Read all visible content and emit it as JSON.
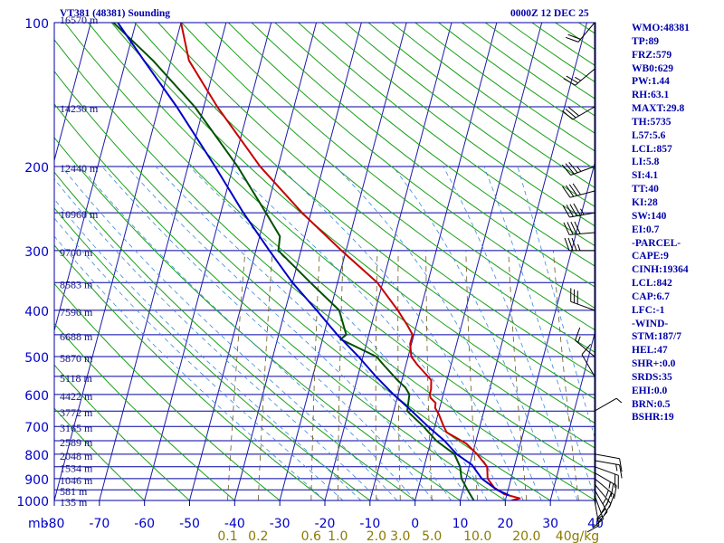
{
  "titles": {
    "left": "VT381 (48381) Sounding",
    "right": "0000Z 12 DEC 25"
  },
  "stats": [
    "WMO:48381",
    "TP:89",
    "FRZ:579",
    "WB0:629",
    "PW:1.44",
    "RH:63.1",
    "MAXT:29.8",
    "TH:5735",
    "L57:5.6",
    "LCL:857",
    "LI:5.8",
    "SI:4.1",
    "TT:40",
    "KI:28",
    "SW:140",
    "EI:0.7",
    "-PARCEL-",
    "CAPE:9",
    "CINH:19364",
    "LCL:842",
    "CAP:6.7",
    "LFC:-1",
    "-WIND-",
    "STM:187/7",
    "HEL:47",
    "SHR+:0.0",
    "SRDS:35",
    "EHI:0.0",
    "BRN:0.5",
    "BSHR:19"
  ],
  "chart_data": {
    "type": "line",
    "subtype": "skew-t log-p sounding",
    "pressure_label": "mb",
    "pressure_ticks": [
      100,
      200,
      300,
      400,
      500,
      600,
      700,
      800,
      900,
      1000
    ],
    "temperature_ticks": [
      -80,
      -70,
      -60,
      -50,
      -40,
      -30,
      -20,
      -10,
      0,
      10,
      20,
      30,
      40
    ],
    "temperature_range": [
      -80,
      40
    ],
    "pressure_range": [
      1000,
      100
    ],
    "mixing_ratio_labels": [
      "0.1",
      "0.2",
      "0.6",
      "1.0",
      "2.0",
      "3.0",
      "5.0",
      "10.0",
      "20.0",
      "40g/kg"
    ],
    "mixing_ratio_values": [
      0.1,
      0.2,
      0.6,
      1.0,
      2.0,
      3.0,
      5.0,
      10.0,
      20.0,
      40.0
    ],
    "heights": [
      {
        "p": 1000,
        "label": "135 m"
      },
      {
        "p": 950,
        "label": "581 m"
      },
      {
        "p": 900,
        "label": "1046 m"
      },
      {
        "p": 850,
        "label": "1534 m"
      },
      {
        "p": 800,
        "label": "2048 m"
      },
      {
        "p": 750,
        "label": "2589 m"
      },
      {
        "p": 700,
        "label": "3165 m"
      },
      {
        "p": 650,
        "label": "3772 m"
      },
      {
        "p": 600,
        "label": "4422 m"
      },
      {
        "p": 550,
        "label": "5118 m"
      },
      {
        "p": 500,
        "label": "5870 m"
      },
      {
        "p": 450,
        "label": "6688 m"
      },
      {
        "p": 400,
        "label": "7590 m"
      },
      {
        "p": 350,
        "label": "8583 m"
      },
      {
        "p": 300,
        "label": "9700 m"
      },
      {
        "p": 250,
        "label": "10960 m"
      },
      {
        "p": 200,
        "label": "12440 m"
      },
      {
        "p": 150,
        "label": "14230 m"
      },
      {
        "p": 100,
        "label": "16570 m"
      }
    ],
    "series": [
      {
        "name": "temperature",
        "color": "#c80000",
        "points": [
          [
            1000,
            21.4
          ],
          [
            990,
            23.1
          ],
          [
            970,
            19.4
          ],
          [
            940,
            16.8
          ],
          [
            900,
            14.8
          ],
          [
            850,
            14.0
          ],
          [
            800,
            11.0
          ],
          [
            760,
            8.0
          ],
          [
            720,
            3.0
          ],
          [
            700,
            2.0
          ],
          [
            660,
            0.2
          ],
          [
            640,
            -1.0
          ],
          [
            625,
            -1.2
          ],
          [
            610,
            -2.6
          ],
          [
            600,
            -3.0
          ],
          [
            585,
            -3.0
          ],
          [
            560,
            -3.5
          ],
          [
            520,
            -7.5
          ],
          [
            500,
            -9.3
          ],
          [
            470,
            -10.3
          ],
          [
            450,
            -10.3
          ],
          [
            430,
            -12.0
          ],
          [
            400,
            -15.0
          ],
          [
            350,
            -21.2
          ],
          [
            300,
            -31.0
          ],
          [
            250,
            -42.0
          ],
          [
            200,
            -54.0
          ],
          [
            150,
            -67.0
          ],
          [
            120,
            -76.0
          ],
          [
            100,
            -80.0
          ]
        ]
      },
      {
        "name": "dewpoint",
        "color": "#005000",
        "points": [
          [
            1000,
            13.0
          ],
          [
            950,
            11.0
          ],
          [
            900,
            9.0
          ],
          [
            850,
            8.0
          ],
          [
            800,
            6.0
          ],
          [
            750,
            1.2
          ],
          [
            700,
            -2.5
          ],
          [
            650,
            -7.0
          ],
          [
            600,
            -7.5
          ],
          [
            580,
            -8.8
          ],
          [
            560,
            -11.0
          ],
          [
            520,
            -15.0
          ],
          [
            500,
            -17.0
          ],
          [
            460,
            -26.0
          ],
          [
            450,
            -25.0
          ],
          [
            400,
            -28.0
          ],
          [
            350,
            -36.0
          ],
          [
            300,
            -45.0
          ],
          [
            280,
            -45.5
          ],
          [
            250,
            -50.0
          ],
          [
            200,
            -59.0
          ],
          [
            150,
            -72.0
          ],
          [
            120,
            -84.0
          ],
          [
            100,
            -95.0
          ]
        ]
      },
      {
        "name": "parcel",
        "color": "#0000c8",
        "points": [
          [
            975,
            20.5
          ],
          [
            950,
            17.5
          ],
          [
            900,
            13.5
          ],
          [
            842,
            10.5
          ],
          [
            800,
            6.5
          ],
          [
            750,
            3.0
          ],
          [
            700,
            -1.5
          ],
          [
            650,
            -6.0
          ],
          [
            600,
            -11.0
          ],
          [
            550,
            -16.0
          ],
          [
            500,
            -21.0
          ],
          [
            450,
            -27.0
          ],
          [
            400,
            -33.0
          ],
          [
            350,
            -40.0
          ],
          [
            300,
            -47.0
          ],
          [
            250,
            -55.0
          ],
          [
            200,
            -64.0
          ],
          [
            150,
            -76.0
          ],
          [
            120,
            -86.0
          ],
          [
            100,
            -94.0
          ]
        ]
      }
    ],
    "wind_barbs": [
      {
        "p": 1000,
        "dir": 170,
        "spd": 10
      },
      {
        "p": 975,
        "dir": 160,
        "spd": 15
      },
      {
        "p": 950,
        "dir": 150,
        "spd": 20
      },
      {
        "p": 925,
        "dir": 140,
        "spd": 25
      },
      {
        "p": 900,
        "dir": 130,
        "spd": 25
      },
      {
        "p": 875,
        "dir": 120,
        "spd": 25
      },
      {
        "p": 850,
        "dir": 110,
        "spd": 20
      },
      {
        "p": 825,
        "dir": 100,
        "spd": 15
      },
      {
        "p": 800,
        "dir": 100,
        "spd": 10
      },
      {
        "p": 650,
        "dir": 60,
        "spd": 5
      },
      {
        "p": 550,
        "dir": 330,
        "spd": 10
      },
      {
        "p": 500,
        "dir": 310,
        "spd": 15
      },
      {
        "p": 400,
        "dir": 290,
        "spd": 30
      },
      {
        "p": 300,
        "dir": 270,
        "spd": 35
      },
      {
        "p": 275,
        "dir": 265,
        "spd": 40
      },
      {
        "p": 250,
        "dir": 260,
        "spd": 45
      },
      {
        "p": 225,
        "dir": 255,
        "spd": 40
      },
      {
        "p": 200,
        "dir": 250,
        "spd": 35
      },
      {
        "p": 150,
        "dir": 240,
        "spd": 30
      },
      {
        "p": 125,
        "dir": 230,
        "spd": 25
      },
      {
        "p": 100,
        "dir": 220,
        "spd": 20
      }
    ]
  }
}
